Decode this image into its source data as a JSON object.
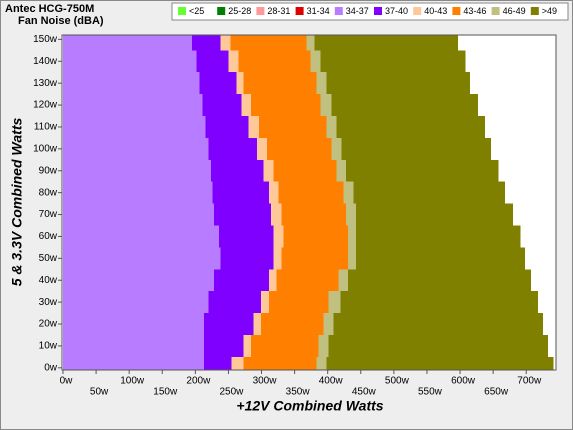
{
  "chart_data": {
    "type": "stackedrows",
    "title": "Antec HCG-750M",
    "subtitle": "Fan Noise (dBA)",
    "x_label": "+12V Combined Watts",
    "y_label": "5 & 3.3V Combined Watts",
    "y": [
      0,
      10,
      20,
      30,
      40,
      50,
      60,
      70,
      80,
      90,
      100,
      110,
      120,
      130,
      140,
      150
    ],
    "xlim": [
      0,
      745
    ],
    "ylim": [
      -1,
      152
    ],
    "xticks": [
      {
        "value": 0,
        "label": "0w"
      },
      {
        "value": 50,
        "label": "50w"
      },
      {
        "value": 100,
        "label": "100w"
      },
      {
        "value": 150,
        "label": "150w"
      },
      {
        "value": 200,
        "label": "200w"
      },
      {
        "value": 250,
        "label": "250w"
      },
      {
        "value": 300,
        "label": "300w"
      },
      {
        "value": 350,
        "label": "350w"
      },
      {
        "value": 400,
        "label": "400w"
      },
      {
        "value": 450,
        "label": "450w"
      },
      {
        "value": 500,
        "label": "500w"
      },
      {
        "value": 550,
        "label": "550w"
      },
      {
        "value": 600,
        "label": "600w"
      },
      {
        "value": 650,
        "label": "650w"
      },
      {
        "value": 700,
        "label": "700w"
      }
    ],
    "yticks": [
      {
        "value": 0,
        "label": "0w"
      },
      {
        "value": 10,
        "label": "10w"
      },
      {
        "value": 20,
        "label": "20w"
      },
      {
        "value": 30,
        "label": "30w"
      },
      {
        "value": 40,
        "label": "40w"
      },
      {
        "value": 50,
        "label": "50w"
      },
      {
        "value": 60,
        "label": "60w"
      },
      {
        "value": 70,
        "label": "70w"
      },
      {
        "value": 80,
        "label": "80w"
      },
      {
        "value": 90,
        "label": "90w"
      },
      {
        "value": 100,
        "label": "100w"
      },
      {
        "value": 110,
        "label": "110w"
      },
      {
        "value": 120,
        "label": "120w"
      },
      {
        "value": 130,
        "label": "130w"
      },
      {
        "value": 140,
        "label": "140w"
      },
      {
        "value": 150,
        "label": "150w"
      }
    ],
    "series": [
      {
        "name": "<25",
        "color": "#66ff33",
        "values": [
          null,
          null,
          null,
          null,
          null,
          null,
          null,
          null,
          null,
          null,
          null,
          null,
          null,
          null,
          null,
          null
        ]
      },
      {
        "name": "25-28",
        "color": "#008000",
        "values": [
          null,
          null,
          null,
          null,
          null,
          null,
          null,
          null,
          null,
          null,
          null,
          null,
          null,
          null,
          null,
          null
        ]
      },
      {
        "name": "28-31",
        "color": "#ff9999",
        "values": [
          null,
          null,
          null,
          null,
          null,
          null,
          null,
          null,
          null,
          null,
          null,
          null,
          null,
          null,
          null,
          null
        ]
      },
      {
        "name": "31-34",
        "color": "#e00000",
        "values": [
          null,
          null,
          null,
          null,
          null,
          null,
          null,
          null,
          null,
          null,
          null,
          null,
          null,
          null,
          null,
          null
        ]
      },
      {
        "name": "34-37",
        "color": "#b77cff",
        "values": [
          213,
          213,
          213,
          220,
          228,
          238,
          236,
          228,
          226,
          224,
          220,
          215,
          211,
          206,
          202,
          195
        ]
      },
      {
        "name": "37-40",
        "color": "#8000ff",
        "values": [
          42,
          60,
          75,
          79,
          83,
          80,
          82,
          86,
          85,
          79,
          73,
          65,
          59,
          56,
          48,
          43
        ]
      },
      {
        "name": "40-43",
        "color": "#ffc898",
        "values": [
          18,
          11,
          11,
          12,
          12,
          12,
          15,
          16,
          15,
          15,
          15,
          16,
          14,
          11,
          15,
          15
        ]
      },
      {
        "name": "43-46",
        "color": "#ff8000",
        "values": [
          110,
          102,
          95,
          90,
          93,
          101,
          98,
          98,
          98,
          95,
          98,
          102,
          105,
          110,
          109,
          115
        ]
      },
      {
        "name": "46-49",
        "color": "#c0c080",
        "values": [
          15,
          15,
          15,
          18,
          15,
          12,
          12,
          15,
          15,
          15,
          15,
          15,
          17,
          15,
          15,
          12
        ]
      },
      {
        "name": ">49",
        "color": "#808000",
        "values": [
          343,
          332,
          316,
          299,
          276,
          255,
          248,
          237,
          229,
          230,
          226,
          225,
          221,
          217,
          219,
          217
        ]
      }
    ]
  }
}
